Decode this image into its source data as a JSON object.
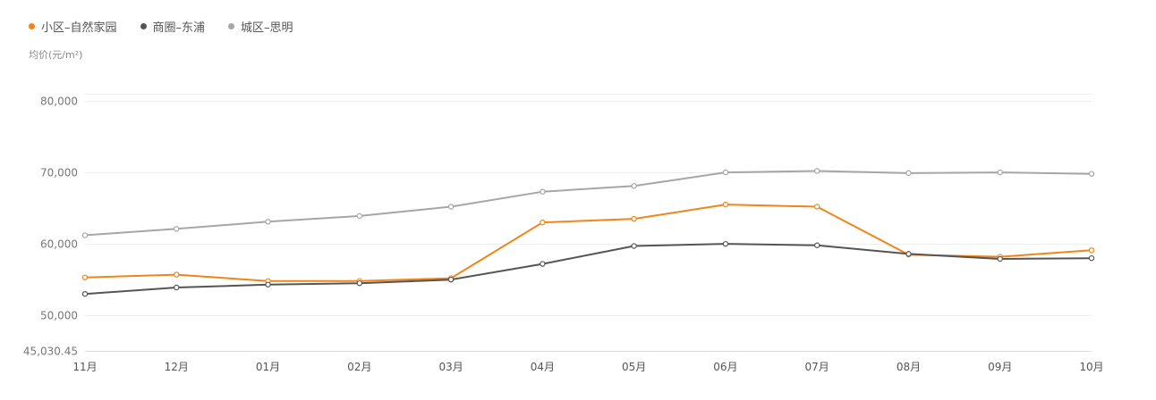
{
  "chart_data": {
    "type": "line",
    "ylabel": "均价(元/m²)",
    "categories": [
      "11月",
      "12月",
      "01月",
      "02月",
      "03月",
      "04月",
      "05月",
      "06月",
      "07月",
      "08月",
      "09月",
      "10月"
    ],
    "y_ticks": [
      "45,030.45",
      "50,000",
      "60,000",
      "70,000",
      "80,000"
    ],
    "y_tick_values": [
      45030.45,
      50000,
      60000,
      70000,
      80000
    ],
    "ylim": [
      45030.45,
      81000
    ],
    "grid": true,
    "legend_position": "top-left",
    "series": [
      {
        "name": "小区–自然家园",
        "color": "#f08519",
        "values": [
          55300,
          55700,
          54800,
          54800,
          55200,
          63000,
          63500,
          65500,
          65200,
          58500,
          58200,
          59100
        ]
      },
      {
        "name": "商圈–东浦",
        "color": "#555555",
        "values": [
          53000,
          53900,
          54300,
          54500,
          55000,
          57200,
          59700,
          60000,
          59800,
          58600,
          57900,
          58000
        ]
      },
      {
        "name": "城区–思明",
        "color": "#a6a6a6",
        "values": [
          61200,
          62100,
          63100,
          63900,
          65200,
          67300,
          68100,
          70000,
          70200,
          69900,
          70000,
          69800
        ]
      }
    ]
  }
}
